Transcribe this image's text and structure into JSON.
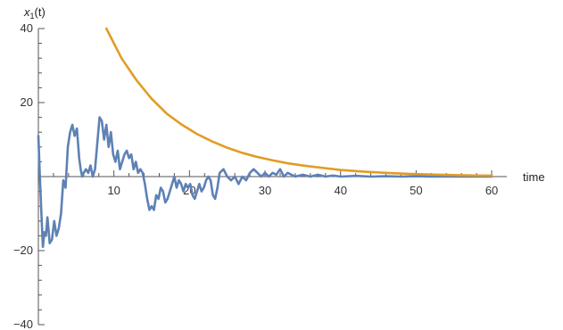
{
  "chart_data": {
    "type": "line",
    "title": "",
    "xlabel": "time",
    "ylabel_base": "x",
    "ylabel_sub": "1",
    "ylabel_rest": "(t)",
    "xlim": [
      0,
      62
    ],
    "ylim": [
      -40,
      40
    ],
    "x_ticks": [
      10,
      20,
      30,
      40,
      50,
      60
    ],
    "x_tick_labels": [
      "10",
      "20",
      "30",
      "40",
      "50",
      "60"
    ],
    "y_ticks": [
      -40,
      -20,
      20,
      40
    ],
    "y_tick_labels": [
      "−40",
      "−20",
      "20",
      "40"
    ],
    "grid": false,
    "legend": "none",
    "series": [
      {
        "color": "#5e81b5",
        "x": [
          0.0,
          0.2,
          0.4,
          0.6,
          0.8,
          1.0,
          1.2,
          1.5,
          1.8,
          2.1,
          2.4,
          2.7,
          3.0,
          3.3,
          3.6,
          3.9,
          4.2,
          4.5,
          4.8,
          5.1,
          5.4,
          5.6,
          5.8,
          6.0,
          6.3,
          6.6,
          6.9,
          7.2,
          7.5,
          7.8,
          8.1,
          8.4,
          8.7,
          9.0,
          9.3,
          9.6,
          9.9,
          10.2,
          10.5,
          10.8,
          11.1,
          11.4,
          11.7,
          12.0,
          12.3,
          12.6,
          12.9,
          13.2,
          13.5,
          13.8,
          14.1,
          14.4,
          14.7,
          15.0,
          15.3,
          15.6,
          15.9,
          16.2,
          16.5,
          16.8,
          17.1,
          17.4,
          17.7,
          18.0,
          18.3,
          18.6,
          18.9,
          19.2,
          19.5,
          19.8,
          20.1,
          20.4,
          20.7,
          21.0,
          21.3,
          21.6,
          21.9,
          22.2,
          22.5,
          22.8,
          23.1,
          23.4,
          23.7,
          24.0,
          24.5,
          25.0,
          25.5,
          26.0,
          26.5,
          27.0,
          27.5,
          28.0,
          28.5,
          29.0,
          29.5,
          30.0,
          30.5,
          31.0,
          31.5,
          32.0,
          32.5,
          33.0,
          34.0,
          35.0,
          36.0,
          37.0,
          38.0,
          39.0,
          40.0,
          42.0,
          44.0,
          46.0,
          48.0,
          50.0,
          52.0,
          55.0,
          58.0,
          60.0
        ],
        "y": [
          11.0,
          0.0,
          -10.0,
          -19.0,
          -15.0,
          -16.0,
          -11.0,
          -18.0,
          -17.0,
          -12.0,
          -16.0,
          -14.0,
          -10.0,
          -1.0,
          -3.0,
          8.0,
          12.0,
          14.0,
          11.0,
          13.0,
          5.0,
          2.0,
          0.0,
          1.0,
          2.0,
          1.0,
          3.0,
          0.0,
          2.0,
          9.0,
          16.0,
          15.0,
          10.0,
          14.0,
          8.0,
          12.0,
          6.0,
          4.0,
          7.0,
          2.0,
          4.0,
          6.0,
          7.0,
          5.0,
          6.0,
          2.0,
          4.0,
          1.0,
          2.0,
          1.0,
          -2.0,
          -6.0,
          -9.0,
          -8.0,
          -9.0,
          -5.0,
          -6.0,
          -3.0,
          -4.0,
          -7.0,
          -6.0,
          -4.0,
          -2.0,
          0.0,
          -3.0,
          -1.0,
          -2.0,
          -4.0,
          -2.0,
          -3.0,
          -2.0,
          -5.0,
          -6.0,
          -4.0,
          -2.0,
          -4.0,
          -3.0,
          -1.0,
          0.0,
          -1.0,
          -5.0,
          -6.0,
          -3.0,
          1.0,
          2.0,
          0.0,
          -1.0,
          0.0,
          -2.0,
          0.0,
          -1.0,
          1.0,
          2.0,
          1.0,
          0.0,
          1.0,
          0.0,
          1.0,
          0.5,
          2.0,
          0.0,
          1.0,
          0.0,
          0.5,
          0.0,
          0.5,
          0.0,
          0.3,
          0.0,
          0.2,
          0.0,
          0.1,
          0.0,
          0.1,
          0.0,
          0.0,
          0.0,
          0.0
        ]
      },
      {
        "color": "#e19c24",
        "x": [
          9.0,
          11.0,
          13.0,
          15.0,
          17.0,
          19.0,
          21.0,
          23.0,
          25.0,
          27.0,
          29.0,
          31.0,
          33.0,
          35.0,
          37.0,
          40.0,
          43.0,
          46.0,
          49.0,
          52.0,
          55.0,
          58.0,
          60.0
        ],
        "y": [
          40.0,
          32.0,
          26.0,
          21.0,
          17.0,
          14.0,
          11.5,
          9.5,
          7.8,
          6.4,
          5.3,
          4.4,
          3.6,
          3.0,
          2.5,
          1.8,
          1.35,
          1.0,
          0.75,
          0.55,
          0.4,
          0.3,
          0.25
        ]
      }
    ]
  }
}
